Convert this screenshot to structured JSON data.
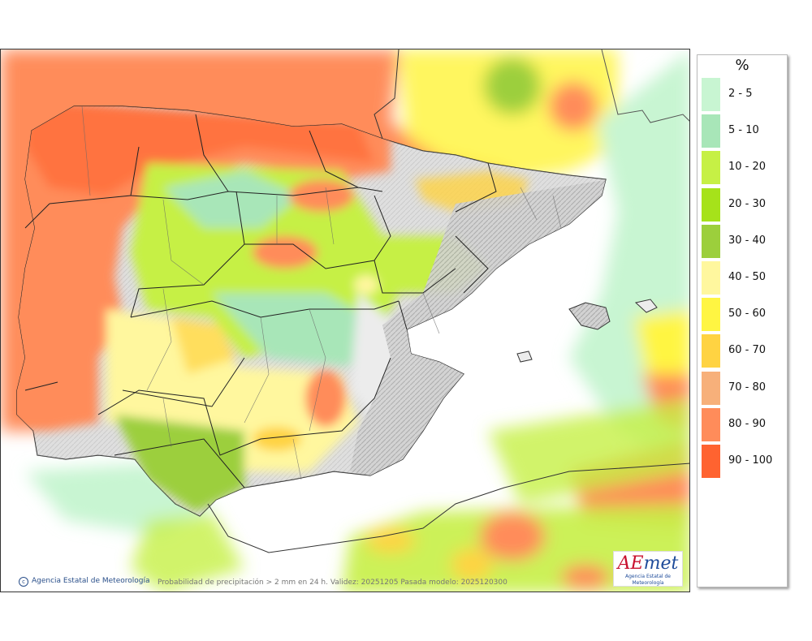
{
  "legend": {
    "unit": "%",
    "items": [
      {
        "label": "2 - 5",
        "color": "#c8f5d2"
      },
      {
        "label": "5 - 10",
        "color": "#a8e6b8"
      },
      {
        "label": "10 - 20",
        "color": "#c6f045"
      },
      {
        "label": "20 - 30",
        "color": "#a6e21a"
      },
      {
        "label": "30 - 40",
        "color": "#9ccf3c"
      },
      {
        "label": "40 - 50",
        "color": "#fff79e"
      },
      {
        "label": "50 - 60",
        "color": "#fff542"
      },
      {
        "label": "60 - 70",
        "color": "#ffd342"
      },
      {
        "label": "70 - 80",
        "color": "#f7b07a"
      },
      {
        "label": "80 - 90",
        "color": "#ff8c5a"
      },
      {
        "label": "90 - 100",
        "color": "#ff6330"
      }
    ]
  },
  "footer": {
    "credit": "Agencia Estatal de Meteorología",
    "caption": "Probabilidad de precipitación > 2 mm en 24 h. Validez: 20251205 Pasada modelo: 2025120300"
  },
  "logo": {
    "brand_a": "AE",
    "brand_b": "met",
    "subtitle": "Agencia Estatal de Meteorología"
  }
}
